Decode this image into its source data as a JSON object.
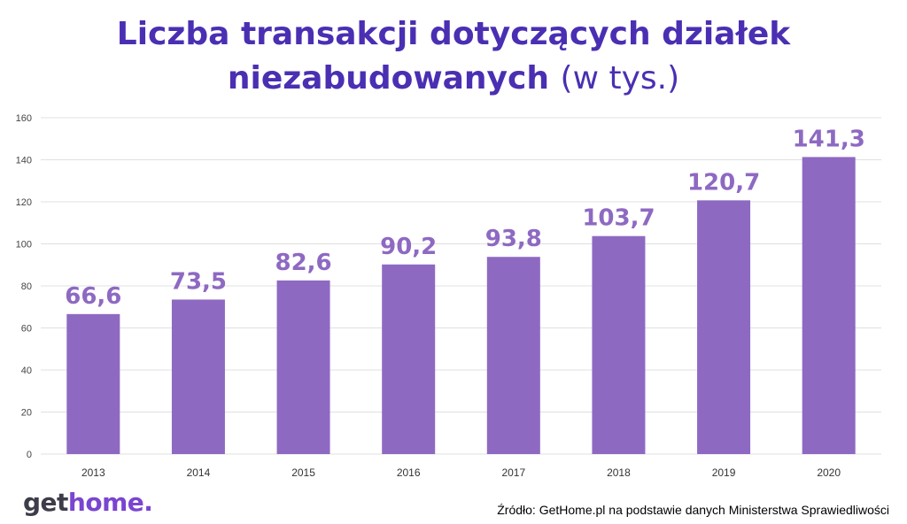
{
  "header": {
    "title_main": "Liczba transakcji dotyczących działek niezabudowanych",
    "title_unit": "(w tys.)"
  },
  "footer": {
    "logo_part1": "get",
    "logo_part2": "home.",
    "source": "Źródło: GetHome.pl na podstawie danych Ministerstwa Sprawiedliwości"
  },
  "colors": {
    "bar": "#8e69c2",
    "label": "#8e69c2",
    "title": "#4a2fb3",
    "grid": "#e0e0e0"
  },
  "chart_data": {
    "type": "bar",
    "title": "Liczba transakcji dotyczących działek niezabudowanych (w tys.)",
    "categories": [
      "2013",
      "2014",
      "2015",
      "2016",
      "2017",
      "2018",
      "2019",
      "2020"
    ],
    "values": [
      66.6,
      73.5,
      82.6,
      90.2,
      93.8,
      103.7,
      120.7,
      141.3
    ],
    "data_labels": [
      "66,6",
      "73,5",
      "82,6",
      "90,2",
      "93,8",
      "103,7",
      "120,7",
      "141,3"
    ],
    "ylim": [
      0,
      160
    ],
    "yticks": [
      0,
      20,
      40,
      60,
      80,
      100,
      120,
      140,
      160
    ],
    "grid": true,
    "xlabel": "",
    "ylabel": ""
  }
}
